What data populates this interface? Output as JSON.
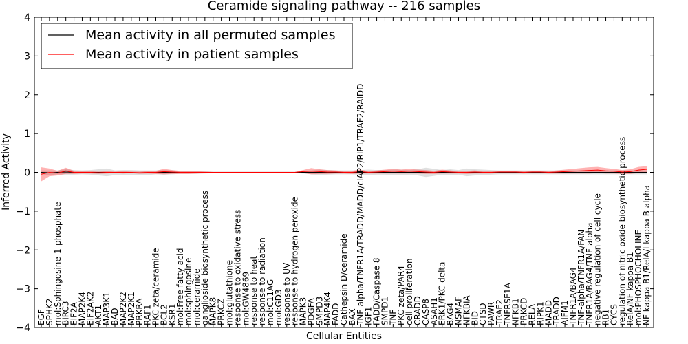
{
  "chart_data": {
    "type": "line",
    "title": "Ceramide signaling pathway -- 216 samples",
    "xlabel": "Cellular Entities",
    "ylabel": "Inferred Activity",
    "ylim": [
      -4,
      4
    ],
    "yticks": [
      -4,
      -3,
      -2,
      -1,
      0,
      1,
      2,
      3,
      4
    ],
    "ytick_labels": [
      "−4",
      "−3",
      "−2",
      "−1",
      "0",
      "1",
      "2",
      "3",
      "4"
    ],
    "legend_position": "top-left",
    "categories": [
      "EGF",
      "SPHK2",
      "mol:Sphingosine-1-phosphate",
      "BIRC3",
      "EIF2A",
      "MAP2K4",
      "EIF2AK2",
      "AKT1",
      "MAP3K1",
      "BAD",
      "MAP2K2",
      "MAP2K1",
      "PRKRA",
      "RAF1",
      "PKC zeta/ceramide",
      "BCL2",
      "KSR1",
      "mol:Free fatty acid",
      "mol:sphingosine",
      "mol:ceramide",
      "ganglioside biosynthetic process",
      "MAPK8",
      "PRKCZ",
      "mol:glutathione",
      "response to oxidative stress",
      "mol:GW4869",
      "response to heat",
      "response to radiation",
      "mol:C11AG",
      "mol:GD3",
      "response to UV",
      "response to hydrogen peroxide",
      "MAPK3",
      "PDGFA",
      "SMPD3",
      "MAP4K4",
      "FADD",
      "Cathepsin D/ceramide",
      "BAX",
      "TNF-alpha/TNFR1A/TRADD/MADD/cIAP2/RIP1/TRAF2/RAIDD",
      "IGF1",
      "FADD/Caspase 8",
      "SMPD1",
      "TNF",
      "PKC zeta/PAR4",
      "cell proliferation",
      "CRADD",
      "CASP8",
      "ASAH1",
      "ERK1/PKC delta",
      "BAG4",
      "NSMAF",
      "NFKBIA",
      "BID",
      "CTSD",
      "PAWR",
      "TRAF2",
      "TNFRSF1A",
      "NFKB1",
      "PRKCD",
      "RELA",
      "RIPK1",
      "MADD",
      "TRADD",
      "AIFM1",
      "TNFR1A/BAG4",
      "TNF-alpha/TNFR1A/FAN",
      "TNFR1A/BAG4/TNF-alpha",
      "negative regulation of cell cycle",
      "RB1",
      "CYCS",
      "regulation of nitric oxide biosynthetic process",
      "RelA/NF kappa B1",
      "mol:PHOSPHOCHOLINE",
      "NF kappa B1/RelA/I kappa B alpha"
    ],
    "series": [
      {
        "name": "Mean activity in all permuted samples",
        "color": "#000000",
        "values": [
          0,
          -0.01,
          0,
          0.01,
          0,
          0,
          0,
          0,
          0,
          -0.01,
          -0.01,
          -0.01,
          -0.01,
          -0.01,
          0,
          0,
          0,
          0,
          0,
          0,
          0,
          0,
          0,
          0,
          0,
          0,
          0,
          0,
          0,
          0,
          0,
          0,
          0,
          0,
          0,
          0,
          0,
          0,
          0,
          0,
          0,
          0,
          0,
          0,
          0,
          0,
          0,
          0,
          0,
          0,
          0,
          0,
          0,
          0,
          0,
          0,
          0,
          0,
          0,
          0,
          0,
          0,
          0,
          0,
          0,
          0,
          0,
          0,
          0,
          0,
          0,
          0,
          0,
          0,
          0
        ],
        "band": [
          0.05,
          0.06,
          0.05,
          0.07,
          0.06,
          0.05,
          0.06,
          0.08,
          0.1,
          0.06,
          0.07,
          0.07,
          0.06,
          0.06,
          0.05,
          0.06,
          0.05,
          0.04,
          0.04,
          0.04,
          0.03,
          0.02,
          0.02,
          0.02,
          0.02,
          0.02,
          0.02,
          0.02,
          0.02,
          0.02,
          0.02,
          0.02,
          0.03,
          0.05,
          0.07,
          0.06,
          0.05,
          0.05,
          0.05,
          0.06,
          0.07,
          0.06,
          0.06,
          0.07,
          0.07,
          0.06,
          0.08,
          0.12,
          0.09,
          0.06,
          0.08,
          0.06,
          0.1,
          0.08,
          0.07,
          0.06,
          0.05,
          0.05,
          0.05,
          0.05,
          0.05,
          0.05,
          0.05,
          0.05,
          0.05,
          0.05,
          0.05,
          0.05,
          0.05,
          0.05,
          0.05,
          0.05,
          0.05,
          0.05,
          0.05
        ]
      },
      {
        "name": "Mean activity in patient samples",
        "color": "#ff0000",
        "values": [
          -0.05,
          0.0,
          -0.02,
          0.04,
          0.0,
          0.0,
          0.0,
          -0.01,
          0.0,
          0.0,
          0.0,
          0.0,
          -0.01,
          0.0,
          0.0,
          0.02,
          0.01,
          0.0,
          0.0,
          0.0,
          0.0,
          0.0,
          0.0,
          0.0,
          0.0,
          0.0,
          0.0,
          0.0,
          0.0,
          0.0,
          0.0,
          0.0,
          0.02,
          0.03,
          0.02,
          0.01,
          0.01,
          0.0,
          0.0,
          0.02,
          0.0,
          0.01,
          0.02,
          0.03,
          0.02,
          0.03,
          0.02,
          0.01,
          0.0,
          0.02,
          0.01,
          0.0,
          0.0,
          0.01,
          0.0,
          0.0,
          0.01,
          0.01,
          0.01,
          0.0,
          0.01,
          0.01,
          0.0,
          0.01,
          0.02,
          0.03,
          0.04,
          0.05,
          0.06,
          0.04,
          0.03,
          0.01,
          0.02,
          0.06,
          0.08
        ],
        "band": [
          0.18,
          0.1,
          0.06,
          0.08,
          0.04,
          0.03,
          0.03,
          0.03,
          0.03,
          0.02,
          0.03,
          0.02,
          0.03,
          0.03,
          0.04,
          0.07,
          0.05,
          0.04,
          0.04,
          0.03,
          0.02,
          0.01,
          0.01,
          0.01,
          0.01,
          0.01,
          0.01,
          0.01,
          0.01,
          0.01,
          0.01,
          0.01,
          0.04,
          0.08,
          0.06,
          0.05,
          0.04,
          0.03,
          0.04,
          0.05,
          0.03,
          0.04,
          0.05,
          0.06,
          0.05,
          0.06,
          0.05,
          0.05,
          0.04,
          0.05,
          0.04,
          0.03,
          0.04,
          0.04,
          0.03,
          0.03,
          0.03,
          0.03,
          0.03,
          0.03,
          0.03,
          0.03,
          0.03,
          0.04,
          0.05,
          0.06,
          0.07,
          0.08,
          0.08,
          0.07,
          0.06,
          0.05,
          0.06,
          0.08,
          0.08
        ]
      }
    ]
  }
}
